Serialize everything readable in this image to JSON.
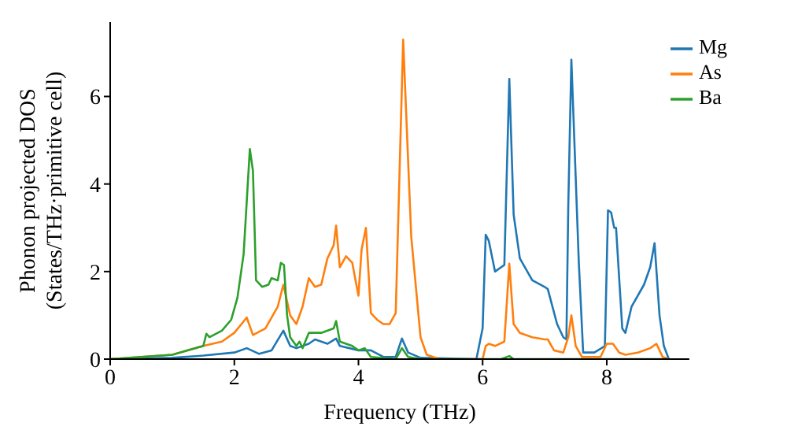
{
  "chart_data": {
    "type": "line",
    "xlabel": "Frequency (THz)",
    "ylabel": "Phonon projected DOS\n(States/THz·primitive cell)",
    "xlim": [
      0,
      9.33
    ],
    "ylim": [
      0,
      7.7
    ],
    "xticks": [
      0,
      2,
      4,
      6,
      8
    ],
    "yticks": [
      0,
      2,
      4,
      6
    ],
    "legend": "top right",
    "series": [
      {
        "name": "Mg",
        "color": "#1f77b4",
        "x": [
          0,
          1,
          1.5,
          2,
          2.2,
          2.4,
          2.6,
          2.79,
          2.9,
          3,
          3.2,
          3.3,
          3.5,
          3.64,
          3.7,
          4,
          4.2,
          4.4,
          4.6,
          4.7,
          4.8,
          5,
          5.9,
          6,
          6.05,
          6.1,
          6.2,
          6.3,
          6.35,
          6.43,
          6.5,
          6.6,
          6.8,
          7,
          7.05,
          7.2,
          7.3,
          7.35,
          7.38,
          7.43,
          7.55,
          7.62,
          7.8,
          7.97,
          8.02,
          8.07,
          8.12,
          8.15,
          8.25,
          8.3,
          8.4,
          8.6,
          8.7,
          8.77,
          8.85,
          8.92,
          9
        ],
        "values": [
          0,
          0.03,
          0.08,
          0.15,
          0.25,
          0.12,
          0.2,
          0.65,
          0.3,
          0.25,
          0.35,
          0.45,
          0.35,
          0.47,
          0.3,
          0.2,
          0.2,
          0.05,
          0.05,
          0.47,
          0.15,
          0.03,
          0,
          0.7,
          2.84,
          2.7,
          2.0,
          2.1,
          2.15,
          6.4,
          3.3,
          2.3,
          1.8,
          1.65,
          1.6,
          0.8,
          0.5,
          0.45,
          3.5,
          6.84,
          2.2,
          0.15,
          0.15,
          0.3,
          3.4,
          3.35,
          3.0,
          3.0,
          0.7,
          0.6,
          1.2,
          1.7,
          2.1,
          2.65,
          1.0,
          0.3,
          0
        ]
      },
      {
        "name": "As",
        "color": "#ff7f0e",
        "x": [
          0,
          1,
          1.5,
          1.8,
          2,
          2.2,
          2.3,
          2.5,
          2.7,
          2.79,
          2.9,
          3,
          3.1,
          3.2,
          3.3,
          3.4,
          3.5,
          3.6,
          3.64,
          3.7,
          3.8,
          3.9,
          4,
          4.05,
          4.12,
          4.2,
          4.3,
          4.4,
          4.5,
          4.6,
          4.72,
          4.85,
          5,
          5.1,
          5.3,
          6,
          6.05,
          6.1,
          6.2,
          6.35,
          6.43,
          6.5,
          6.6,
          6.8,
          7,
          7.05,
          7.15,
          7.3,
          7.38,
          7.43,
          7.5,
          7.6,
          7.9,
          8,
          8.1,
          8.2,
          8.3,
          8.5,
          8.7,
          8.8,
          8.9,
          9
        ],
        "values": [
          0,
          0.1,
          0.3,
          0.4,
          0.6,
          0.95,
          0.55,
          0.7,
          1.2,
          1.7,
          1.0,
          0.8,
          1.2,
          1.85,
          1.65,
          1.7,
          2.3,
          2.6,
          3.05,
          2.1,
          2.35,
          2.2,
          1.45,
          2.5,
          3.0,
          1.05,
          0.9,
          0.8,
          0.8,
          1.05,
          7.3,
          2.8,
          0.5,
          0.1,
          0,
          0,
          0.3,
          0.35,
          0.3,
          0.4,
          2.18,
          0.8,
          0.6,
          0.5,
          0.45,
          0.45,
          0.2,
          0.15,
          0.5,
          1.0,
          0.3,
          0.05,
          0.05,
          0.35,
          0.35,
          0.15,
          0.1,
          0.15,
          0.25,
          0.35,
          0.05,
          0
        ]
      },
      {
        "name": "Ba",
        "color": "#2ca02c",
        "x": [
          0,
          1,
          1.5,
          1.55,
          1.6,
          1.8,
          1.95,
          2.05,
          2.15,
          2.25,
          2.3,
          2.35,
          2.45,
          2.55,
          2.6,
          2.7,
          2.75,
          2.8,
          2.85,
          2.9,
          3,
          3.05,
          3.1,
          3.2,
          3.4,
          3.6,
          3.64,
          3.7,
          3.9,
          4,
          4.1,
          4.2,
          4.6,
          4.7,
          4.8,
          5,
          6.3,
          6.43,
          6.5,
          9
        ],
        "values": [
          0,
          0.1,
          0.3,
          0.58,
          0.5,
          0.65,
          0.9,
          1.4,
          2.4,
          4.8,
          4.3,
          1.8,
          1.65,
          1.7,
          1.85,
          1.8,
          2.2,
          2.15,
          1.0,
          0.5,
          0.3,
          0.4,
          0.25,
          0.6,
          0.6,
          0.7,
          0.87,
          0.4,
          0.3,
          0.2,
          0.25,
          0.05,
          0,
          0.25,
          0.05,
          0,
          0,
          0.07,
          0,
          0
        ]
      }
    ]
  }
}
